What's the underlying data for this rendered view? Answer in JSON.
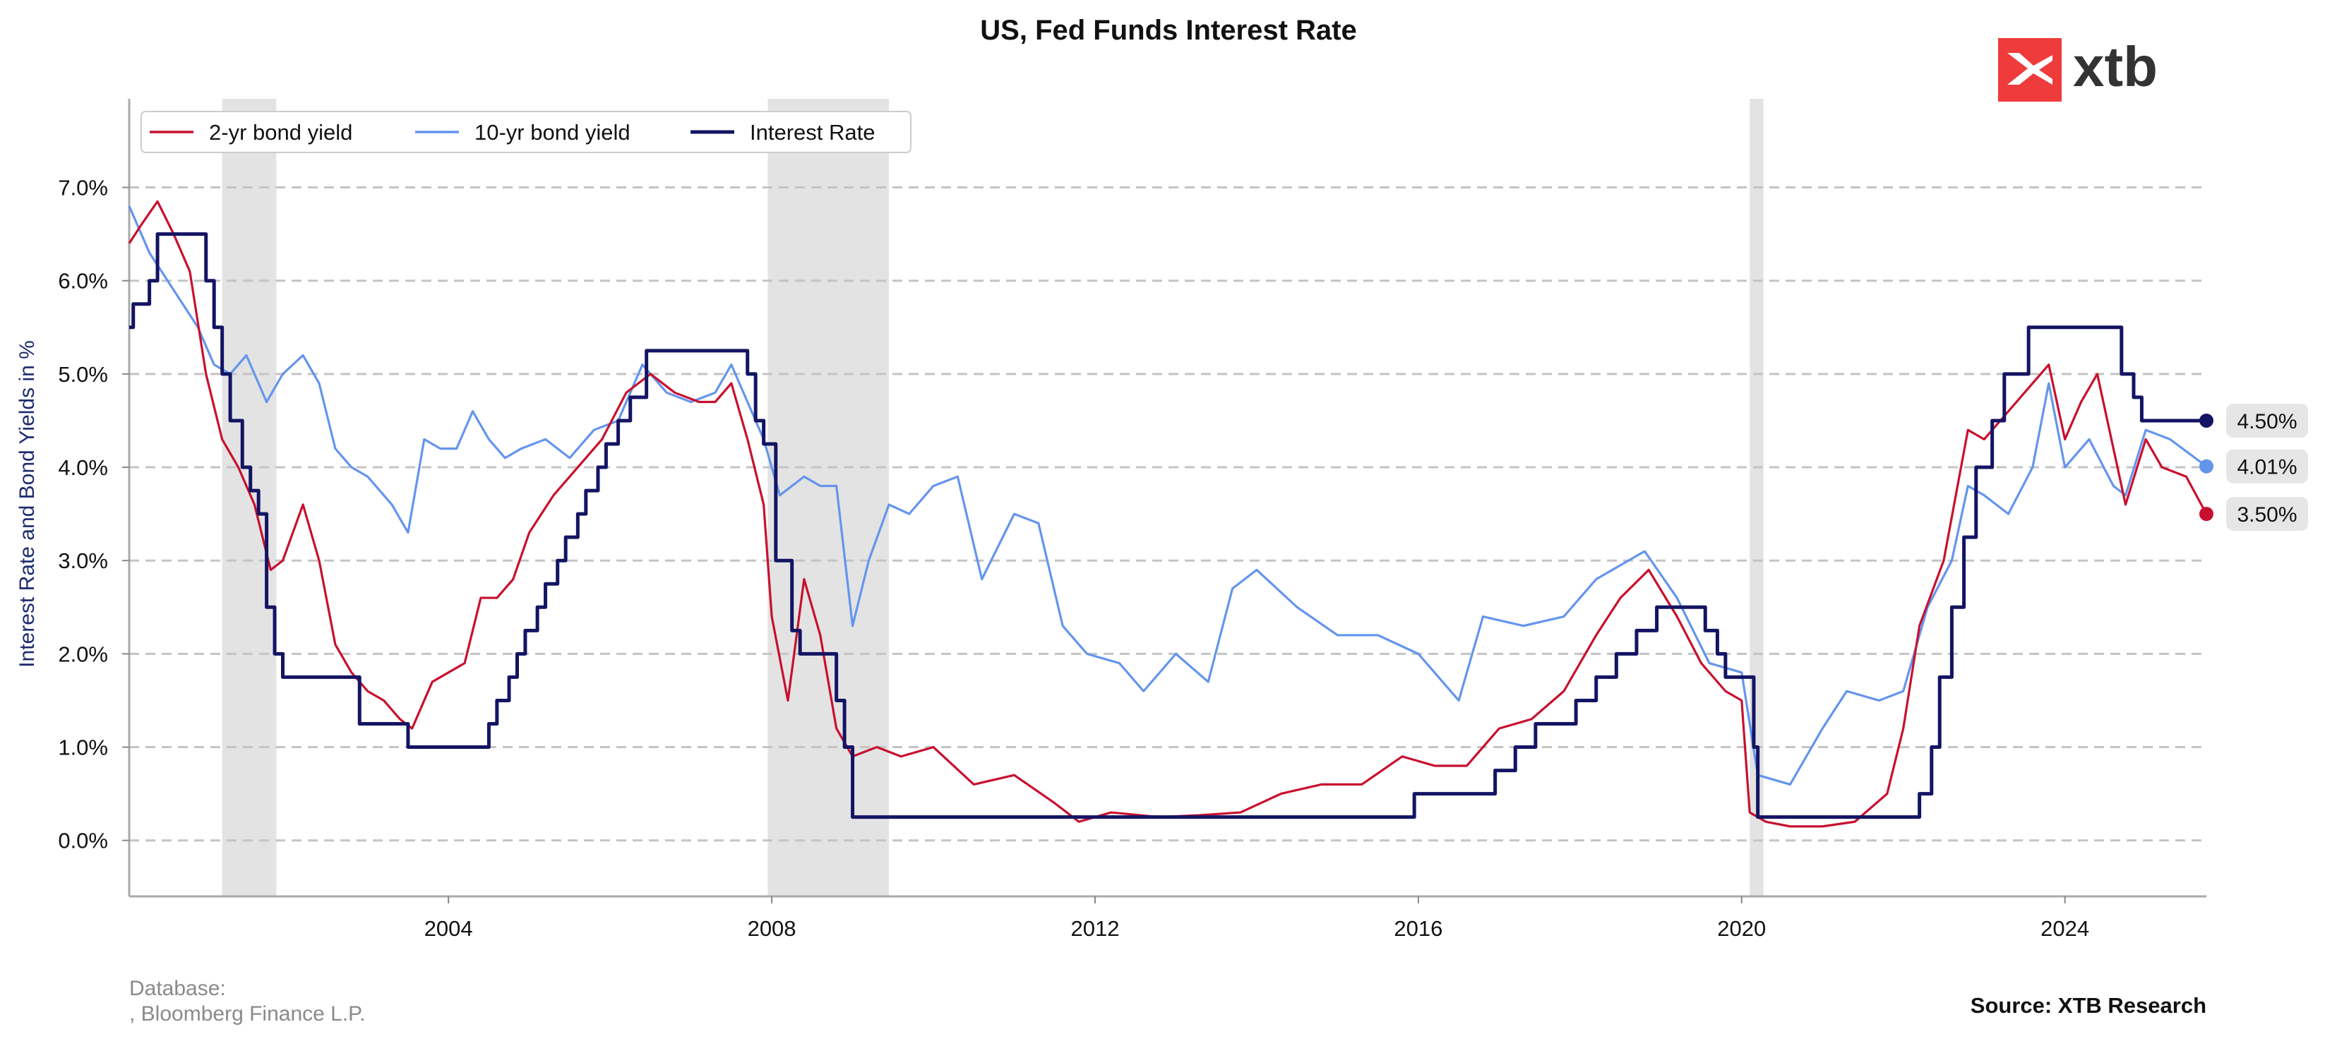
{
  "chart_data": {
    "type": "line",
    "title": "US, Fed Funds Interest Rate",
    "xlabel": "",
    "ylabel": "Interest Rate and Bond Yields in %",
    "xlim": [
      2000.05,
      2025.75
    ],
    "ylim": [
      -0.6,
      7.95
    ],
    "x_ticks": [
      2004,
      2008,
      2012,
      2016,
      2020,
      2024
    ],
    "x_tick_labels": [
      "2004",
      "2008",
      "2012",
      "2016",
      "2020",
      "2024"
    ],
    "y_ticks": [
      0,
      1,
      2,
      3,
      4,
      5,
      6,
      7
    ],
    "y_tick_labels": [
      "0.0%",
      "1.0%",
      "2.0%",
      "3.0%",
      "4.0%",
      "5.0%",
      "6.0%",
      "7.0%"
    ],
    "grid": "horizontal dashed",
    "legend_position": "top-left",
    "recession_bands": [
      [
        2001.2,
        2001.87
      ],
      [
        2007.95,
        2009.45
      ],
      [
        2020.1,
        2020.27
      ]
    ],
    "series": [
      {
        "name": "2-yr bond yield",
        "color": "#c8102e",
        "x": [
          2000.05,
          2000.2,
          2000.4,
          2000.6,
          2000.8,
          2001.0,
          2001.2,
          2001.4,
          2001.6,
          2001.8,
          2001.95,
          2002.2,
          2002.4,
          2002.6,
          2002.8,
          2003.0,
          2003.2,
          2003.4,
          2003.55,
          2003.8,
          2004.0,
          2004.2,
          2004.4,
          2004.6,
          2004.8,
          2005.0,
          2005.3,
          2005.6,
          2005.9,
          2006.2,
          2006.5,
          2006.8,
          2007.1,
          2007.3,
          2007.5,
          2007.7,
          2007.9,
          2008.0,
          2008.2,
          2008.4,
          2008.6,
          2008.8,
          2009.0,
          2009.3,
          2009.6,
          2010.0,
          2010.5,
          2011.0,
          2011.5,
          2011.8,
          2012.2,
          2012.8,
          2013.3,
          2013.8,
          2014.3,
          2014.8,
          2015.3,
          2015.8,
          2016.2,
          2016.6,
          2017.0,
          2017.4,
          2017.8,
          2018.2,
          2018.5,
          2018.85,
          2019.2,
          2019.5,
          2019.8,
          2020.0,
          2020.1,
          2020.3,
          2020.6,
          2021.0,
          2021.4,
          2021.8,
          2022.0,
          2022.2,
          2022.5,
          2022.8,
          2023.0,
          2023.3,
          2023.6,
          2023.8,
          2024.0,
          2024.2,
          2024.4,
          2024.6,
          2024.75,
          2025.0,
          2025.2,
          2025.5,
          2025.75
        ],
        "values": [
          6.4,
          6.6,
          6.85,
          6.5,
          6.1,
          5.0,
          4.3,
          4.0,
          3.6,
          2.9,
          3.0,
          3.6,
          3.0,
          2.1,
          1.8,
          1.6,
          1.5,
          1.3,
          1.2,
          1.7,
          1.8,
          1.9,
          2.6,
          2.6,
          2.8,
          3.3,
          3.7,
          4.0,
          4.3,
          4.8,
          5.0,
          4.8,
          4.7,
          4.7,
          4.9,
          4.3,
          3.6,
          2.4,
          1.5,
          2.8,
          2.2,
          1.2,
          0.9,
          1.0,
          0.9,
          1.0,
          0.6,
          0.7,
          0.4,
          0.2,
          0.3,
          0.25,
          0.27,
          0.3,
          0.5,
          0.6,
          0.6,
          0.9,
          0.8,
          0.8,
          1.2,
          1.3,
          1.6,
          2.2,
          2.6,
          2.9,
          2.4,
          1.9,
          1.6,
          1.5,
          0.3,
          0.2,
          0.15,
          0.15,
          0.2,
          0.5,
          1.2,
          2.3,
          3.0,
          4.4,
          4.3,
          4.6,
          4.9,
          5.1,
          4.3,
          4.7,
          5.0,
          4.2,
          3.6,
          4.3,
          4.0,
          3.9,
          3.5
        ]
      },
      {
        "name": "10-yr bond yield",
        "color": "#6495ed",
        "x": [
          2000.05,
          2000.3,
          2000.6,
          2000.9,
          2001.1,
          2001.3,
          2001.5,
          2001.75,
          2001.95,
          2002.2,
          2002.4,
          2002.6,
          2002.8,
          2003.0,
          2003.3,
          2003.5,
          2003.7,
          2003.9,
          2004.1,
          2004.3,
          2004.5,
          2004.7,
          2004.9,
          2005.2,
          2005.5,
          2005.8,
          2006.1,
          2006.4,
          2006.7,
          2007.0,
          2007.3,
          2007.5,
          2007.7,
          2007.9,
          2008.1,
          2008.4,
          2008.6,
          2008.8,
          2009.0,
          2009.2,
          2009.45,
          2009.7,
          2010.0,
          2010.3,
          2010.6,
          2011.0,
          2011.3,
          2011.6,
          2011.9,
          2012.3,
          2012.6,
          2013.0,
          2013.4,
          2013.7,
          2014.0,
          2014.5,
          2015.0,
          2015.5,
          2016.0,
          2016.5,
          2016.8,
          2017.3,
          2017.8,
          2018.2,
          2018.8,
          2019.2,
          2019.6,
          2020.0,
          2020.2,
          2020.6,
          2021.0,
          2021.3,
          2021.7,
          2022.0,
          2022.3,
          2022.6,
          2022.8,
          2023.0,
          2023.3,
          2023.6,
          2023.8,
          2024.0,
          2024.3,
          2024.6,
          2024.75,
          2025.0,
          2025.3,
          2025.75
        ],
        "values": [
          6.8,
          6.3,
          5.9,
          5.5,
          5.1,
          5.0,
          5.2,
          4.7,
          5.0,
          5.2,
          4.9,
          4.2,
          4.0,
          3.9,
          3.6,
          3.3,
          4.3,
          4.2,
          4.2,
          4.6,
          4.3,
          4.1,
          4.2,
          4.3,
          4.1,
          4.4,
          4.5,
          5.1,
          4.8,
          4.7,
          4.8,
          5.1,
          4.7,
          4.3,
          3.7,
          3.9,
          3.8,
          3.8,
          2.3,
          3.0,
          3.6,
          3.5,
          3.8,
          3.9,
          2.8,
          3.5,
          3.4,
          2.3,
          2.0,
          1.9,
          1.6,
          2.0,
          1.7,
          2.7,
          2.9,
          2.5,
          2.2,
          2.2,
          2.0,
          1.5,
          2.4,
          2.3,
          2.4,
          2.8,
          3.1,
          2.6,
          1.9,
          1.8,
          0.7,
          0.6,
          1.2,
          1.6,
          1.5,
          1.6,
          2.5,
          3.0,
          3.8,
          3.7,
          3.5,
          4.0,
          4.9,
          4.0,
          4.3,
          3.8,
          3.7,
          4.4,
          4.3,
          4.01
        ]
      },
      {
        "name": "Interest Rate",
        "color": "#141464",
        "step": true,
        "x": [
          2000.05,
          2000.1,
          2000.3,
          2000.4,
          2001.0,
          2001.1,
          2001.2,
          2001.3,
          2001.45,
          2001.55,
          2001.65,
          2001.75,
          2001.85,
          2001.95,
          2002.9,
          2003.5,
          2004.5,
          2004.6,
          2004.75,
          2004.85,
          2004.95,
          2005.1,
          2005.2,
          2005.35,
          2005.45,
          2005.6,
          2005.7,
          2005.85,
          2005.95,
          2006.1,
          2006.25,
          2006.45,
          2007.7,
          2007.8,
          2007.9,
          2008.05,
          2008.25,
          2008.35,
          2008.8,
          2008.9,
          2009.0,
          2015.95,
          2016.95,
          2017.2,
          2017.45,
          2017.95,
          2018.2,
          2018.45,
          2018.7,
          2018.95,
          2019.55,
          2019.7,
          2019.8,
          2020.15,
          2020.2,
          2022.2,
          2022.35,
          2022.45,
          2022.6,
          2022.75,
          2022.9,
          2023.1,
          2023.25,
          2023.55,
          2024.7,
          2024.85,
          2024.95,
          2025.75
        ],
        "values": [
          5.5,
          5.75,
          6.0,
          6.5,
          6.0,
          5.5,
          5.0,
          4.5,
          4.0,
          3.75,
          3.5,
          2.5,
          2.0,
          1.75,
          1.25,
          1.0,
          1.25,
          1.5,
          1.75,
          2.0,
          2.25,
          2.5,
          2.75,
          3.0,
          3.25,
          3.5,
          3.75,
          4.0,
          4.25,
          4.5,
          4.75,
          5.25,
          5.0,
          4.5,
          4.25,
          3.0,
          2.25,
          2.0,
          1.5,
          1.0,
          0.25,
          0.5,
          0.75,
          1.0,
          1.25,
          1.5,
          1.75,
          2.0,
          2.25,
          2.5,
          2.25,
          2.0,
          1.75,
          1.0,
          0.25,
          0.5,
          1.0,
          1.75,
          2.5,
          3.25,
          4.0,
          4.5,
          5.0,
          5.5,
          5.0,
          4.75,
          4.5,
          4.5
        ]
      }
    ],
    "end_labels": [
      {
        "series": "Interest Rate",
        "value": 4.5,
        "text": "4.50%",
        "color": "#141464"
      },
      {
        "series": "10-yr bond yield",
        "value": 4.01,
        "text": "4.01%",
        "color": "#6495ed"
      },
      {
        "series": "2-yr bond yield",
        "value": 3.5,
        "text": "3.50%",
        "color": "#c8102e"
      }
    ]
  },
  "branding": {
    "logo_text": "xtb",
    "logo_color": "#ef3b3b"
  },
  "footer": {
    "database_label": "Database:",
    "database_source": ", Bloomberg Finance L.P.",
    "source": "Source: XTB Research"
  }
}
